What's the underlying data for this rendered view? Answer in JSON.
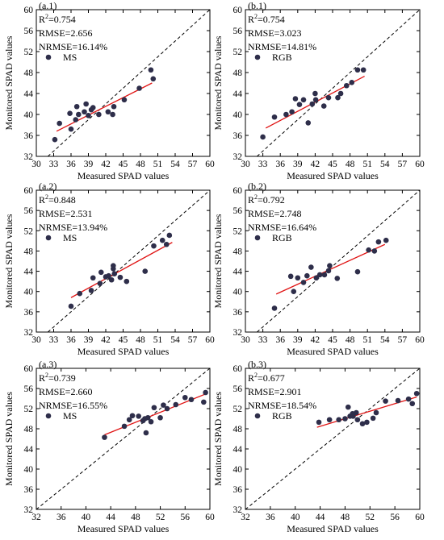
{
  "chart_data": [
    {
      "type": "scatter",
      "panel_label": "(a.1)",
      "series_name": "MS",
      "stats": {
        "r2_label": "R",
        "r2_sup": "2",
        "r2_value": "=0.754",
        "rmse": "RMSE=2.656",
        "nrmse": "NRMSE=16.14%"
      },
      "xlabel": "Measured SPAD values",
      "ylabel": "Monitored SPAD values",
      "xlim": [
        30,
        60
      ],
      "ylim": [
        32,
        60
      ],
      "xticks": [
        30,
        33,
        36,
        39,
        42,
        45,
        48,
        51,
        54,
        57,
        60
      ],
      "yticks": [
        32,
        36,
        40,
        44,
        48,
        52,
        56,
        60
      ],
      "points": [
        [
          33.2,
          35.2
        ],
        [
          34.0,
          38.3
        ],
        [
          35.8,
          40.2
        ],
        [
          36.0,
          37.2
        ],
        [
          36.8,
          39.0
        ],
        [
          37.0,
          41.5
        ],
        [
          37.3,
          40.0
        ],
        [
          38.3,
          40.5
        ],
        [
          38.6,
          42.0
        ],
        [
          39.0,
          39.8
        ],
        [
          39.5,
          40.9
        ],
        [
          39.8,
          41.3
        ],
        [
          40.8,
          40.0
        ],
        [
          42.4,
          40.5
        ],
        [
          43.2,
          40.0
        ],
        [
          43.4,
          41.5
        ],
        [
          45.2,
          42.8
        ],
        [
          47.8,
          45.0
        ],
        [
          49.8,
          48.5
        ],
        [
          50.2,
          46.8
        ]
      ],
      "fit_line": [
        [
          33.5,
          36.8
        ],
        [
          50.0,
          46.0
        ]
      ]
    },
    {
      "type": "scatter",
      "panel_label": "(b.1)",
      "series_name": "RGB",
      "stats": {
        "r2_label": "R",
        "r2_sup": "2",
        "r2_value": "=0.754",
        "rmse": "RMSE=3.023",
        "nrmse": "NRMSE=14.81%"
      },
      "xlabel": "Measured SPAD values",
      "ylabel": "Monitored SPAD values",
      "xlim": [
        30,
        60
      ],
      "ylim": [
        32,
        60
      ],
      "xticks": [
        30,
        33,
        36,
        39,
        42,
        45,
        48,
        51,
        54,
        57,
        60
      ],
      "yticks": [
        32,
        36,
        40,
        44,
        48,
        52,
        56,
        60
      ],
      "points": [
        [
          33.0,
          35.7
        ],
        [
          35.0,
          39.5
        ],
        [
          37.0,
          40.0
        ],
        [
          38.0,
          40.5
        ],
        [
          38.6,
          43.0
        ],
        [
          39.3,
          41.9
        ],
        [
          40.0,
          42.8
        ],
        [
          40.8,
          38.4
        ],
        [
          41.5,
          42.0
        ],
        [
          42.0,
          44.0
        ],
        [
          42.1,
          42.8
        ],
        [
          43.5,
          41.6
        ],
        [
          44.3,
          43.2
        ],
        [
          45.9,
          43.2
        ],
        [
          46.4,
          44.0
        ],
        [
          47.4,
          45.5
        ],
        [
          48.3,
          46.1
        ],
        [
          49.3,
          48.5
        ],
        [
          50.3,
          48.5
        ]
      ],
      "fit_line": [
        [
          33.5,
          37.4
        ],
        [
          50.5,
          47.3
        ]
      ]
    },
    {
      "type": "scatter",
      "panel_label": "(a.2)",
      "series_name": "MS",
      "stats": {
        "r2_label": "R",
        "r2_sup": "2",
        "r2_value": "=0.848",
        "rmse": "RMSE=2.531",
        "nrmse": "NRMSE=13.94%"
      },
      "xlabel": "Measured SPAD values",
      "ylabel": "Monitored SPAD values",
      "xlim": [
        30,
        60
      ],
      "ylim": [
        32,
        60
      ],
      "xticks": [
        30,
        33,
        36,
        39,
        42,
        45,
        48,
        51,
        54,
        57,
        60
      ],
      "yticks": [
        32,
        36,
        40,
        44,
        48,
        52,
        56,
        60
      ],
      "points": [
        [
          36.0,
          37.1
        ],
        [
          37.5,
          39.6
        ],
        [
          39.5,
          40.2
        ],
        [
          39.8,
          42.7
        ],
        [
          41.0,
          41.6
        ],
        [
          41.2,
          43.8
        ],
        [
          42.0,
          42.9
        ],
        [
          42.5,
          43.1
        ],
        [
          43.0,
          42.3
        ],
        [
          43.3,
          44.5
        ],
        [
          43.3,
          45.1
        ],
        [
          43.5,
          43.5
        ],
        [
          44.5,
          42.8
        ],
        [
          45.6,
          42.0
        ],
        [
          48.8,
          44.0
        ],
        [
          50.3,
          49.0
        ],
        [
          51.8,
          50.1
        ],
        [
          52.5,
          49.3
        ],
        [
          53.0,
          51.1
        ]
      ],
      "fit_line": [
        [
          36.0,
          38.8
        ],
        [
          53.5,
          49.7
        ]
      ]
    },
    {
      "type": "scatter",
      "panel_label": "(b.2)",
      "series_name": "RGB",
      "stats": {
        "r2_label": "R",
        "r2_sup": "2",
        "r2_value": "=0.792",
        "rmse": "RMSE=2.748",
        "nrmse": "NRMSE=16.64%"
      },
      "xlabel": "Measured SPAD values",
      "ylabel": "Monitored SPAD values",
      "xlim": [
        30,
        60
      ],
      "ylim": [
        32,
        60
      ],
      "xticks": [
        30,
        33,
        36,
        39,
        42,
        45,
        48,
        51,
        54,
        57,
        60
      ],
      "yticks": [
        32,
        36,
        40,
        44,
        48,
        52,
        56,
        60
      ],
      "points": [
        [
          35.0,
          36.7
        ],
        [
          37.8,
          43.0
        ],
        [
          38.3,
          40.0
        ],
        [
          39.0,
          42.7
        ],
        [
          40.0,
          41.8
        ],
        [
          40.6,
          43.1
        ],
        [
          41.3,
          44.8
        ],
        [
          42.2,
          42.7
        ],
        [
          42.8,
          43.3
        ],
        [
          43.6,
          43.3
        ],
        [
          44.3,
          44.1
        ],
        [
          44.5,
          45.1
        ],
        [
          45.8,
          42.6
        ],
        [
          49.3,
          43.9
        ],
        [
          51.2,
          48.2
        ],
        [
          52.2,
          48.0
        ],
        [
          52.9,
          49.8
        ],
        [
          54.2,
          50.1
        ]
      ],
      "fit_line": [
        [
          35.3,
          39.5
        ],
        [
          54.0,
          49.3
        ]
      ]
    },
    {
      "type": "scatter",
      "panel_label": "(a.3)",
      "series_name": "MS",
      "stats": {
        "r2_label": "R",
        "r2_sup": "2",
        "r2_value": "=0.739",
        "rmse": "RMSE=2.660",
        "nrmse": "NRMSE=16.55%"
      },
      "xlabel": "Measured SPAD values",
      "ylabel": "Monitored SPAD values",
      "xlim": [
        32,
        60
      ],
      "ylim": [
        32,
        60
      ],
      "xticks": [
        32,
        36,
        40,
        44,
        48,
        52,
        56,
        60
      ],
      "yticks": [
        32,
        36,
        40,
        44,
        48,
        52,
        56,
        60
      ],
      "points": [
        [
          43.0,
          46.3
        ],
        [
          46.2,
          48.5
        ],
        [
          47.0,
          49.8
        ],
        [
          47.5,
          50.6
        ],
        [
          48.5,
          50.5
        ],
        [
          49.5,
          50.0
        ],
        [
          49.2,
          49.6
        ],
        [
          50.0,
          50.2
        ],
        [
          50.5,
          49.4
        ],
        [
          51.0,
          52.2
        ],
        [
          52.0,
          50.2
        ],
        [
          52.5,
          52.7
        ],
        [
          53.1,
          52.0
        ],
        [
          49.7,
          47.2
        ],
        [
          54.5,
          52.8
        ],
        [
          56.0,
          54.2
        ],
        [
          57.0,
          53.8
        ],
        [
          59.0,
          53.3
        ],
        [
          59.3,
          55.2
        ]
      ],
      "fit_line": [
        [
          43.0,
          46.8
        ],
        [
          59.5,
          55.0
        ]
      ]
    },
    {
      "type": "scatter",
      "panel_label": "(b.3)",
      "series_name": "RGB",
      "stats": {
        "r2_label": "R",
        "r2_sup": "2",
        "r2_value": "=0.677",
        "rmse": "RMSE=2.901",
        "nrmse": "NRMSE=18.54%"
      },
      "xlabel": "Measured SPAD values",
      "ylabel": "Monitored SPAD values",
      "xlim": [
        32,
        60
      ],
      "ylim": [
        32,
        60
      ],
      "xticks": [
        32,
        36,
        40,
        44,
        48,
        52,
        56,
        60
      ],
      "yticks": [
        32,
        36,
        40,
        44,
        48,
        52,
        56,
        60
      ],
      "points": [
        [
          43.8,
          49.3
        ],
        [
          45.5,
          49.8
        ],
        [
          47.0,
          49.8
        ],
        [
          48.0,
          50.0
        ],
        [
          48.5,
          52.3
        ],
        [
          48.8,
          50.5
        ],
        [
          49.3,
          50.5
        ],
        [
          49.8,
          51.2
        ],
        [
          49.2,
          51.0
        ],
        [
          50.0,
          49.8
        ],
        [
          50.8,
          49.0
        ],
        [
          51.5,
          49.3
        ],
        [
          52.5,
          50.1
        ],
        [
          53.0,
          51.2
        ],
        [
          54.5,
          53.5
        ],
        [
          56.5,
          53.6
        ],
        [
          58.2,
          53.9
        ],
        [
          58.8,
          53.0
        ],
        [
          59.5,
          55.0
        ]
      ],
      "fit_line": [
        [
          43.5,
          48.3
        ],
        [
          59.5,
          54.3
        ]
      ]
    }
  ],
  "colors": {
    "point": "#2e2e4a",
    "fit_line": "#e01414",
    "axis": "#000000",
    "diagonal": "#000000"
  }
}
